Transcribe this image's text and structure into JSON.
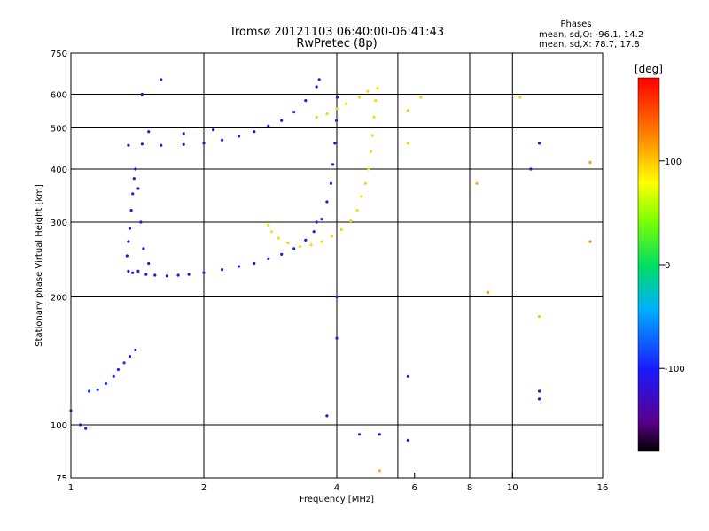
{
  "header": {
    "title_line1": "Tromsø 20121103 06:40:00-06:41:43",
    "title_line2": "RwPretec (8p)"
  },
  "phases": {
    "label": "Phases",
    "line_o": "mean, sd,O: -96.1, 14.2",
    "line_x": "mean, sd,X:  78.7, 17.8"
  },
  "colorbar": {
    "unit": "[deg]",
    "ticks": [
      {
        "value": 100,
        "label": "100"
      },
      {
        "value": 0,
        "label": "0"
      },
      {
        "value": -100,
        "label": "-100"
      }
    ],
    "range": [
      -180,
      180
    ]
  },
  "chart_data": {
    "type": "scatter",
    "title": "Tromsø 20121103 06:40:00-06:41:43",
    "subtitle": "RwPretec (8p)",
    "xlabel": "Frequency [MHz]",
    "ylabel": "Stationary phase Virtual Height [km]",
    "xscale": "log",
    "yscale": "log",
    "xlim": [
      1,
      16
    ],
    "ylim": [
      75,
      750
    ],
    "x_ticks": [
      {
        "value": 1,
        "label": "1"
      },
      {
        "value": 2,
        "label": "2"
      },
      {
        "value": 4,
        "label": "4"
      },
      {
        "value": 6,
        "label": "6"
      },
      {
        "value": 8,
        "label": "8"
      },
      {
        "value": 10,
        "label": "10"
      },
      {
        "value": 16,
        "label": "16"
      }
    ],
    "x_grid": [
      1,
      2,
      4,
      5.5,
      8,
      10
    ],
    "y_ticks": [
      {
        "value": 75,
        "label": "75"
      },
      {
        "value": 100,
        "label": "100"
      },
      {
        "value": 200,
        "label": "200"
      },
      {
        "value": 300,
        "label": "300"
      },
      {
        "value": 400,
        "label": "400"
      },
      {
        "value": 500,
        "label": "500"
      },
      {
        "value": 600,
        "label": "600"
      },
      {
        "value": 750,
        "label": "750"
      }
    ],
    "y_grid": [
      100,
      200,
      300,
      400,
      500,
      600
    ],
    "grid": true,
    "color_scale": "phase [deg]",
    "series": [
      {
        "mode": "O",
        "points": [
          [
            1.0,
            108,
            -110
          ],
          [
            1.05,
            100,
            -105
          ],
          [
            1.08,
            98,
            -100
          ],
          [
            1.1,
            120,
            -90
          ],
          [
            1.15,
            121,
            -85
          ],
          [
            1.2,
            125,
            -88
          ],
          [
            1.25,
            130,
            -92
          ],
          [
            1.28,
            135,
            -95
          ],
          [
            1.32,
            140,
            -90
          ],
          [
            1.36,
            145,
            -100
          ],
          [
            1.4,
            150,
            -105
          ],
          [
            1.38,
            228,
            -105
          ],
          [
            1.42,
            230,
            -110
          ],
          [
            1.48,
            226,
            -108
          ],
          [
            1.55,
            225,
            -112
          ],
          [
            1.65,
            224,
            -110
          ],
          [
            1.75,
            225,
            -108
          ],
          [
            1.85,
            226,
            -110
          ],
          [
            2.0,
            228,
            -112
          ],
          [
            2.2,
            232,
            -110
          ],
          [
            2.4,
            236,
            -108
          ],
          [
            2.6,
            240,
            -105
          ],
          [
            2.8,
            246,
            -103
          ],
          [
            3.0,
            252,
            -100
          ],
          [
            3.2,
            260,
            -98
          ],
          [
            3.4,
            272,
            -102
          ],
          [
            3.55,
            285,
            -105
          ],
          [
            3.7,
            305,
            -108
          ],
          [
            3.8,
            335,
            -110
          ],
          [
            3.88,
            370,
            -108
          ],
          [
            3.92,
            410,
            -110
          ],
          [
            3.96,
            460,
            -112
          ],
          [
            3.99,
            520,
            -110
          ],
          [
            4.01,
            590,
            -108
          ],
          [
            1.35,
            230,
            -110
          ],
          [
            1.34,
            250,
            -108
          ],
          [
            1.35,
            270,
            -110
          ],
          [
            1.36,
            290,
            -112
          ],
          [
            1.37,
            320,
            -110
          ],
          [
            1.38,
            350,
            -108
          ],
          [
            1.39,
            380,
            -110
          ],
          [
            1.4,
            400,
            -112
          ],
          [
            1.42,
            360,
            -108
          ],
          [
            1.44,
            300,
            -110
          ],
          [
            1.46,
            260,
            -112
          ],
          [
            1.5,
            240,
            -108
          ],
          [
            1.35,
            455,
            -110
          ],
          [
            1.45,
            458,
            -112
          ],
          [
            1.6,
            455,
            -110
          ],
          [
            1.8,
            457,
            -108
          ],
          [
            2.0,
            460,
            -110
          ],
          [
            2.2,
            468,
            -112
          ],
          [
            2.4,
            478,
            -110
          ],
          [
            2.6,
            490,
            -108
          ],
          [
            2.8,
            505,
            -110
          ],
          [
            3.0,
            520,
            -112
          ],
          [
            3.2,
            545,
            -108
          ],
          [
            3.4,
            580,
            -105
          ],
          [
            3.6,
            625,
            -110
          ],
          [
            3.65,
            650,
            -108
          ],
          [
            1.5,
            490,
            -110
          ],
          [
            1.8,
            485,
            -112
          ],
          [
            2.1,
            495,
            -108
          ],
          [
            3.6,
            300,
            -110
          ],
          [
            4.5,
            95,
            -90
          ],
          [
            5.0,
            95,
            -100
          ],
          [
            5.8,
            92,
            -100
          ],
          [
            5.8,
            130,
            -100
          ],
          [
            1.45,
            600,
            -105
          ],
          [
            1.6,
            650,
            -108
          ],
          [
            11.5,
            460,
            -115
          ],
          [
            11.5,
            120,
            -120
          ],
          [
            11.5,
            115,
            -125
          ],
          [
            11.0,
            400,
            -110
          ],
          [
            4.0,
            200,
            -100
          ],
          [
            4.0,
            160,
            -100
          ],
          [
            3.8,
            105,
            -110
          ]
        ]
      },
      {
        "mode": "X",
        "points": [
          [
            2.8,
            295,
            90
          ],
          [
            2.85,
            285,
            92
          ],
          [
            2.95,
            275,
            95
          ],
          [
            3.1,
            268,
            96
          ],
          [
            3.3,
            263,
            95
          ],
          [
            3.5,
            265,
            94
          ],
          [
            3.7,
            270,
            95
          ],
          [
            3.9,
            278,
            96
          ],
          [
            4.1,
            288,
            95
          ],
          [
            4.3,
            302,
            94
          ],
          [
            4.45,
            320,
            95
          ],
          [
            4.55,
            345,
            96
          ],
          [
            4.65,
            370,
            95
          ],
          [
            4.72,
            400,
            94
          ],
          [
            4.78,
            440,
            95
          ],
          [
            4.82,
            480,
            96
          ],
          [
            4.86,
            530,
            95
          ],
          [
            4.9,
            580,
            94
          ],
          [
            4.95,
            620,
            95
          ],
          [
            3.6,
            530,
            98
          ],
          [
            3.8,
            540,
            97
          ],
          [
            4.0,
            555,
            96
          ],
          [
            4.2,
            570,
            95
          ],
          [
            4.5,
            590,
            96
          ],
          [
            4.7,
            610,
            95
          ],
          [
            5.8,
            550,
            98
          ],
          [
            5.8,
            460,
            98
          ],
          [
            6.2,
            590,
            100
          ],
          [
            8.3,
            370,
            110
          ],
          [
            8.8,
            205,
            115
          ],
          [
            10.4,
            590,
            100
          ],
          [
            11.5,
            180,
            100
          ],
          [
            15.0,
            270,
            120
          ],
          [
            15.0,
            415,
            118
          ],
          [
            5.0,
            78,
            110
          ]
        ]
      }
    ]
  }
}
